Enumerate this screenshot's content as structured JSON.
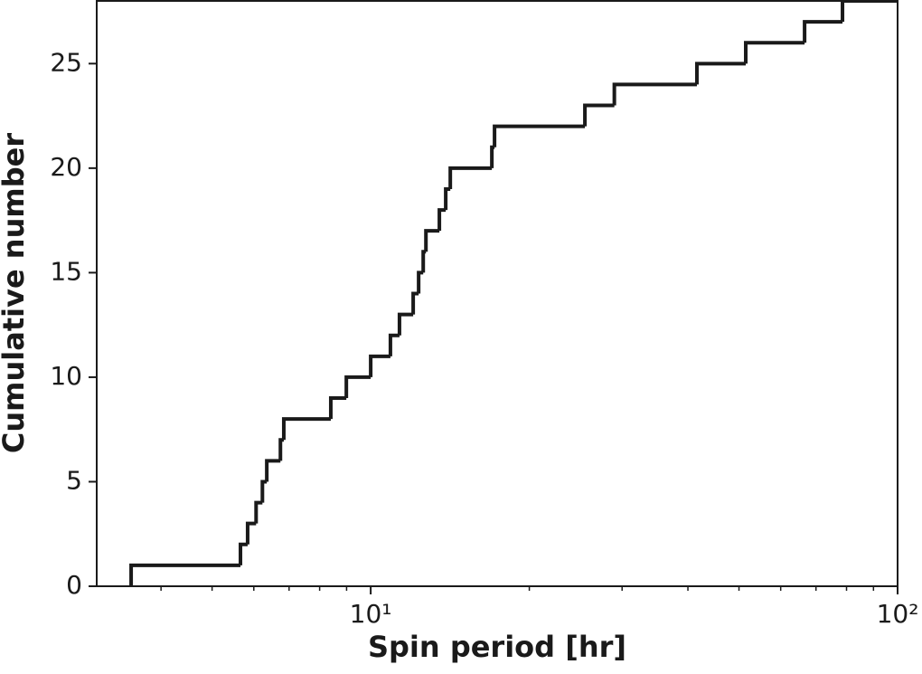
{
  "chart_data": {
    "type": "step",
    "xlabel": "Spin period [hr]",
    "ylabel": "Cumulative number",
    "x": [
      3.51,
      5.66,
      5.84,
      6.06,
      6.23,
      6.35,
      6.74,
      6.84,
      8.4,
      8.99,
      10.0,
      10.9,
      11.34,
      12.04,
      12.33,
      12.58,
      12.73,
      13.5,
      13.88,
      14.16,
      16.98,
      17.18,
      25.5,
      29.0,
      41.6,
      51.5,
      66.6,
      78.6
    ],
    "values": [
      1,
      2,
      3,
      4,
      5,
      6,
      7,
      8,
      9,
      10,
      11,
      12,
      13,
      14,
      15,
      16,
      17,
      18,
      19,
      20,
      21,
      22,
      23,
      24,
      25,
      26,
      27,
      28
    ],
    "color": "#1a1a1a",
    "xscale": "log",
    "xlim": [
      3.02,
      100
    ],
    "ylim": [
      0,
      28
    ],
    "xticks": [
      {
        "value": 10,
        "label": "10¹"
      },
      {
        "value": 100,
        "label": "10²"
      }
    ],
    "xminorticks": [
      4,
      5,
      6,
      7,
      8,
      9,
      20,
      30,
      40,
      50,
      60,
      70,
      80,
      90
    ],
    "yticks": [
      0,
      5,
      10,
      15,
      20,
      25
    ]
  }
}
